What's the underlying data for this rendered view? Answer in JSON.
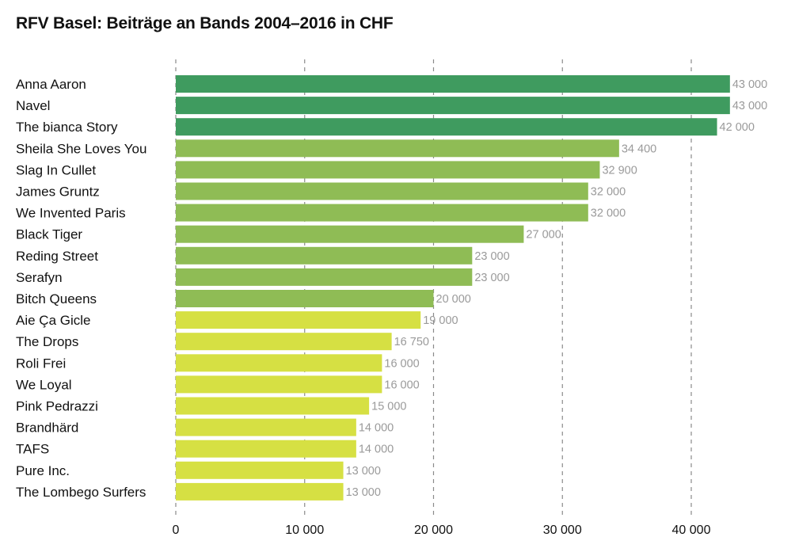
{
  "chart_data": {
    "type": "bar",
    "orientation": "horizontal",
    "title": "RFV Basel: Beiträge an Bands 2004–2016 in CHF",
    "categories": [
      "Anna Aaron",
      "Navel",
      "The bianca Story",
      "Sheila She Loves You",
      "Slag In Cullet",
      "James Gruntz",
      "We Invented Paris",
      "Black Tiger",
      "Reding Street",
      "Serafyn",
      "Bitch Queens",
      "Aie Ça Gicle",
      "The Drops",
      "Roli Frei",
      "We Loyal",
      "Pink Pedrazzi",
      "Brandhärd",
      "TAFS",
      "Pure Inc.",
      "The Lombego Surfers"
    ],
    "values": [
      43000,
      43000,
      42000,
      34400,
      32900,
      32000,
      32000,
      27000,
      23000,
      23000,
      20000,
      19000,
      16750,
      16000,
      16000,
      15000,
      14000,
      14000,
      13000,
      13000
    ],
    "value_labels": [
      "43 000",
      "43 000",
      "42 000",
      "34 400",
      "32 900",
      "32 000",
      "32 000",
      "27 000",
      "23 000",
      "23 000",
      "20 000",
      "19 000",
      "16 750",
      "16 000",
      "16 000",
      "15 000",
      "14 000",
      "14 000",
      "13 000",
      "13 000"
    ],
    "bar_colors": [
      "#3f9b5f",
      "#3f9b5f",
      "#3f9b5f",
      "#8fbc55",
      "#8fbc55",
      "#8fbc55",
      "#8fbc55",
      "#8fbc55",
      "#8fbc55",
      "#8fbc55",
      "#8fbc55",
      "#d6e043",
      "#d6e043",
      "#d6e043",
      "#d6e043",
      "#d6e043",
      "#d6e043",
      "#d6e043",
      "#d6e043",
      "#d6e043"
    ],
    "xlim": [
      0,
      47000
    ],
    "xticks": [
      0,
      10000,
      20000,
      30000,
      40000
    ],
    "xtick_labels": [
      "0",
      "10 000",
      "20 000",
      "30 000",
      "40 000"
    ],
    "grid": "vertical-dashed",
    "xlabel": "",
    "ylabel": ""
  }
}
